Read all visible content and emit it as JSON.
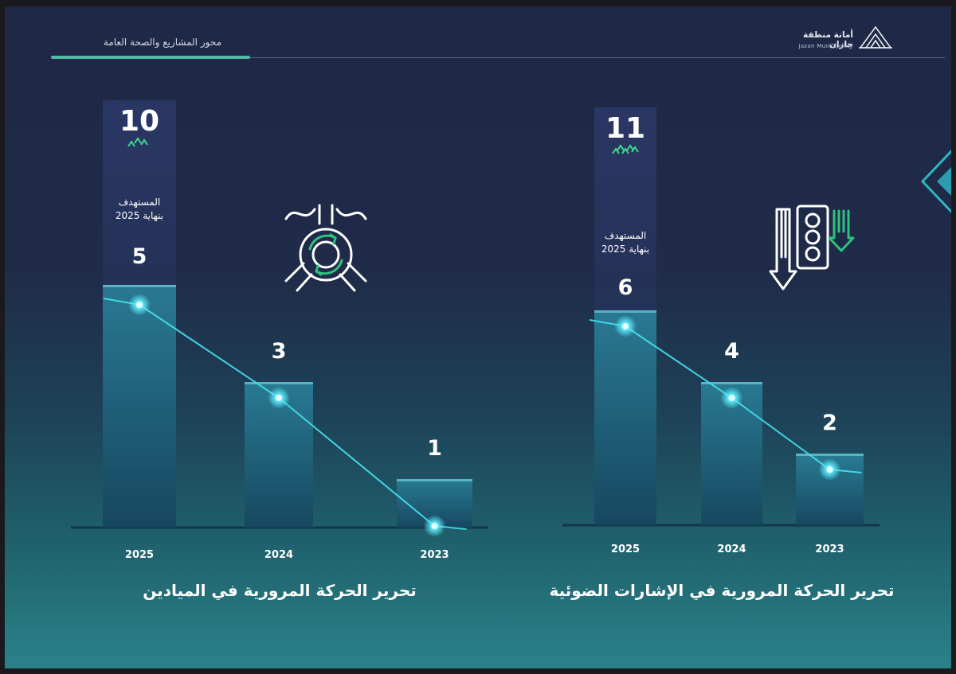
{
  "header": {
    "title": "محور المشاريع والصحة العامة",
    "logo_ar": "أمانة منطقة جازان",
    "logo_en": "Jazan Municipality"
  },
  "colors": {
    "background_top": "#1f2846",
    "background_bottom": "#2a8289",
    "accent": "#4fb9a4",
    "line": "#3fd4e0",
    "arrow_green": "#2ec27e"
  },
  "icons": {
    "left_chart": "roundabout-icon",
    "right_chart": "traffic-light-icon"
  },
  "chart_data": [
    {
      "type": "bar",
      "title": "تحرير الحركة المرورية  في الميادين",
      "categories": [
        "2025",
        "2024",
        "2023"
      ],
      "values": [
        5,
        3,
        1
      ],
      "value_labels": [
        "5",
        "3",
        "1"
      ],
      "target": {
        "value": 10,
        "label_line1": "المستهدف",
        "label_line2": "بنهاية 2025"
      },
      "ylim": [
        0,
        11
      ],
      "legend": "none",
      "grid": false
    },
    {
      "type": "bar",
      "title": "تحرير الحركة المرورية في الإشارات الضوئية",
      "categories": [
        "2025",
        "2024",
        "2023"
      ],
      "values": [
        6,
        4,
        2
      ],
      "value_labels": [
        "6",
        "4",
        "2"
      ],
      "target": {
        "value": 11,
        "label_line1": "المستهدف",
        "label_line2": "بنهاية 2025"
      },
      "ylim": [
        0,
        12
      ],
      "legend": "none",
      "grid": false
    }
  ]
}
